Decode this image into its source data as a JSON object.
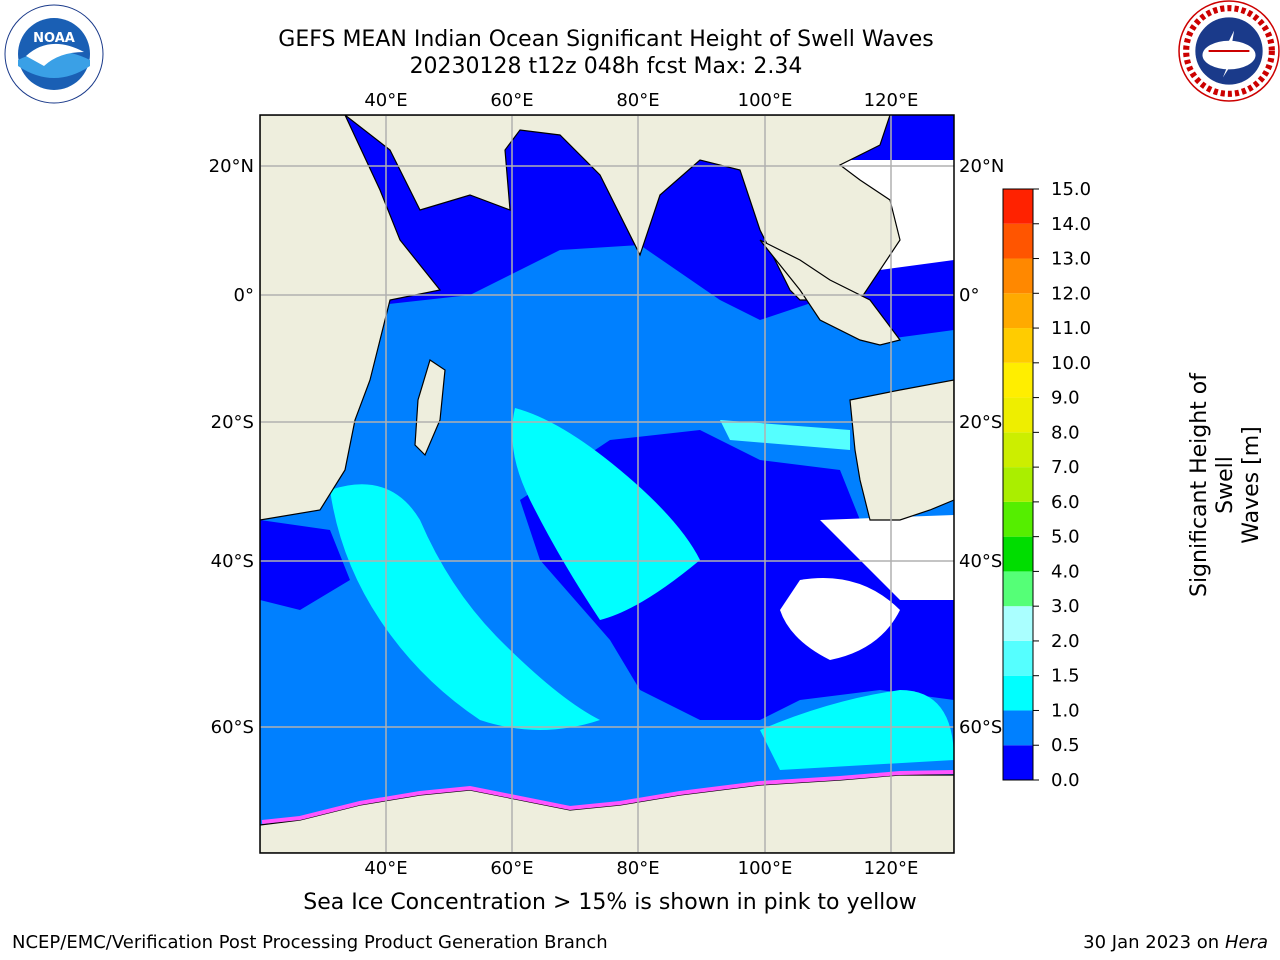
{
  "title": {
    "line1": "GEFS MEAN Indian Ocean Significant Height of Swell Waves",
    "line2": "20230128 t12z 048h fcst   Max: 2.34"
  },
  "logos": {
    "left": {
      "icon": "noaa-logo-icon",
      "text": "NOAA"
    },
    "right": {
      "icon": "nws-logo-icon",
      "text": "NATIONAL WEATHER SERVICE"
    }
  },
  "map": {
    "longitude_labels": [
      "40°E",
      "60°E",
      "80°E",
      "100°E",
      "120°E"
    ],
    "latitude_labels": [
      "20°N",
      "0°",
      "20°S",
      "40°S",
      "60°S"
    ],
    "colors": {
      "land": "#eeeedd",
      "ocean_low": "#0000ff",
      "ocean_mid": "#0080ff",
      "ocean_high": "#00ffff",
      "grid": "#b0b0b0",
      "ice": "#ff55ff"
    }
  },
  "colorbar": {
    "title_line1": "Significant Height of Swell",
    "title_line2": "Waves [m]",
    "tick_labels": [
      "0.0",
      "0.5",
      "1.0",
      "1.5",
      "2.0",
      "3.0",
      "4.0",
      "5.0",
      "6.0",
      "7.0",
      "8.0",
      "9.0",
      "10.0",
      "11.0",
      "12.0",
      "13.0",
      "14.0",
      "15.0"
    ],
    "colors": [
      "#0000ff",
      "#0080ff",
      "#00ffff",
      "#55ffff",
      "#aaffff",
      "#55ff77",
      "#00dd00",
      "#55ee00",
      "#aaee00",
      "#ccee00",
      "#eeee00",
      "#ffee00",
      "#ffcc00",
      "#ffaa00",
      "#ff8800",
      "#ff5500",
      "#ff2200"
    ]
  },
  "caption": "Sea Ice Concentration > 15% is shown in pink to yellow",
  "footer": {
    "left": "NCEP/EMC/Verification Post Processing Product Generation Branch",
    "right_prefix": "30 Jan 2023 on ",
    "right_machine": "Hera"
  }
}
